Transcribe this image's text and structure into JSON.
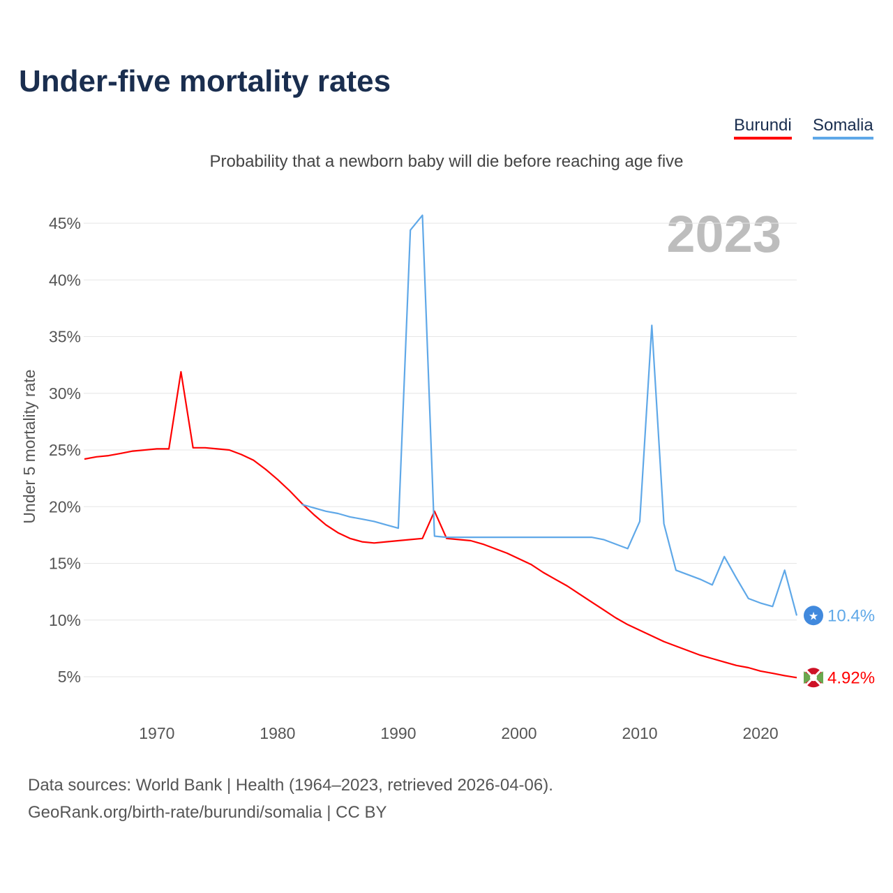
{
  "chart_data": {
    "type": "line",
    "title": "Under-five mortality rates",
    "subtitle": "Probability that a newborn baby will die before reaching age five",
    "ylabel": "Under 5 mortality rate",
    "xlabel": "",
    "year_label": "2023",
    "xlim": [
      1964,
      2023
    ],
    "ylim": [
      5,
      45
    ],
    "yticks": [
      5,
      10,
      15,
      20,
      25,
      30,
      35,
      40,
      45
    ],
    "ytick_labels": [
      "5%",
      "10%",
      "15%",
      "20%",
      "25%",
      "30%",
      "35%",
      "40%",
      "45%"
    ],
    "xticks": [
      1970,
      1980,
      1990,
      2000,
      2010,
      2020
    ],
    "xtick_labels": [
      "1970",
      "1980",
      "1990",
      "2000",
      "2010",
      "2020"
    ],
    "grid": true,
    "legend_position": "top-right",
    "series": [
      {
        "name": "Burundi",
        "color": "#ff0000",
        "end_label": "4.92%",
        "icon": "burundi-flag-icon",
        "x": [
          1964,
          1965,
          1966,
          1967,
          1968,
          1969,
          1970,
          1971,
          1972,
          1973,
          1974,
          1975,
          1976,
          1977,
          1978,
          1979,
          1980,
          1981,
          1982,
          1983,
          1984,
          1985,
          1986,
          1987,
          1988,
          1989,
          1990,
          1991,
          1992,
          1993,
          1994,
          1995,
          1996,
          1997,
          1998,
          1999,
          2000,
          2001,
          2002,
          2003,
          2004,
          2005,
          2006,
          2007,
          2008,
          2009,
          2010,
          2011,
          2012,
          2013,
          2014,
          2015,
          2016,
          2017,
          2018,
          2019,
          2020,
          2021,
          2022,
          2023
        ],
        "values": [
          24.2,
          24.4,
          24.5,
          24.7,
          24.9,
          25.0,
          25.1,
          25.1,
          31.9,
          25.2,
          25.2,
          25.1,
          25.0,
          24.6,
          24.1,
          23.3,
          22.4,
          21.4,
          20.3,
          19.3,
          18.4,
          17.7,
          17.2,
          16.9,
          16.8,
          16.9,
          17.0,
          17.1,
          17.2,
          19.6,
          17.2,
          17.1,
          17.0,
          16.7,
          16.3,
          15.9,
          15.4,
          14.9,
          14.2,
          13.6,
          13.0,
          12.3,
          11.6,
          10.9,
          10.2,
          9.6,
          9.1,
          8.6,
          8.1,
          7.7,
          7.3,
          6.9,
          6.6,
          6.3,
          6.0,
          5.8,
          5.5,
          5.3,
          5.1,
          4.92
        ]
      },
      {
        "name": "Somalia",
        "color": "#5fa8e8",
        "end_label": "10.4%",
        "icon": "somalia-flag-icon",
        "x": [
          1982,
          1983,
          1984,
          1985,
          1986,
          1987,
          1988,
          1989,
          1990,
          1991,
          1992,
          1993,
          1994,
          1995,
          1996,
          1997,
          1998,
          1999,
          2000,
          2001,
          2002,
          2003,
          2004,
          2005,
          2006,
          2007,
          2008,
          2009,
          2010,
          2011,
          2012,
          2013,
          2014,
          2015,
          2016,
          2017,
          2018,
          2019,
          2020,
          2021,
          2022,
          2023
        ],
        "values": [
          20.2,
          19.9,
          19.6,
          19.4,
          19.1,
          18.9,
          18.7,
          18.4,
          18.1,
          44.4,
          45.7,
          17.4,
          17.3,
          17.3,
          17.3,
          17.3,
          17.3,
          17.3,
          17.3,
          17.3,
          17.3,
          17.3,
          17.3,
          17.3,
          17.3,
          17.1,
          16.7,
          16.3,
          18.7,
          36.0,
          18.5,
          14.4,
          14.0,
          13.6,
          13.1,
          15.6,
          13.7,
          11.9,
          11.5,
          11.2,
          14.4,
          10.4
        ]
      }
    ]
  },
  "footer": {
    "line1": "Data sources: World Bank | Health (1964–2023, retrieved 2026-04-06).",
    "line2": "GeoRank.org/birth-rate/burundi/somalia | CC BY"
  }
}
